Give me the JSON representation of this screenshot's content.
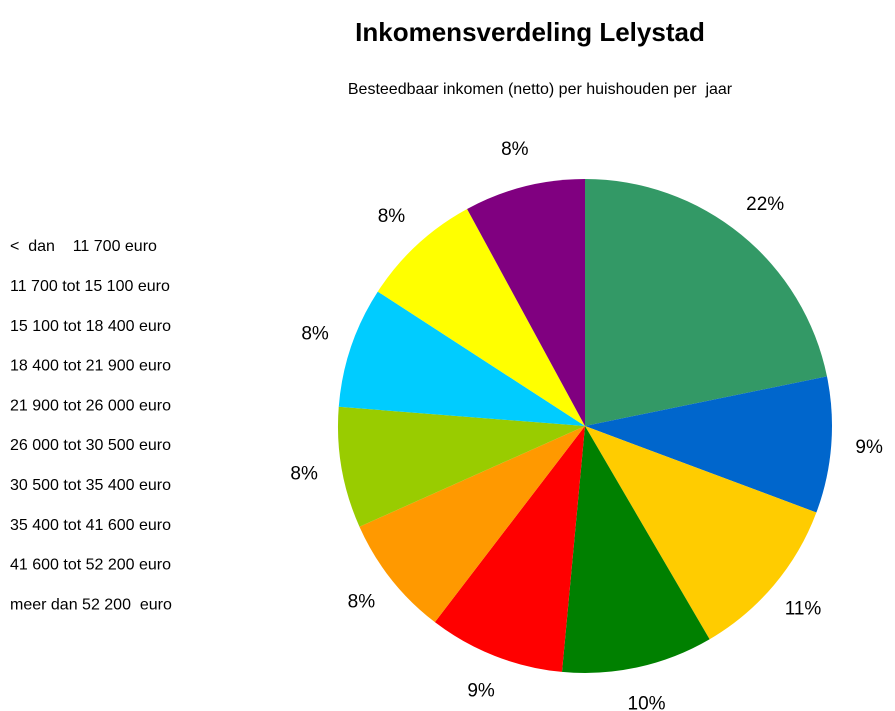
{
  "chart_data": {
    "type": "pie",
    "title": "Inkomensverdeling Lelystad",
    "subtitle": "Besteedbaar inkomen (netto) per huishouden per  jaar",
    "categories": [
      "<  dan    11 700 euro",
      "11 700 tot 15 100 euro",
      "15 100 tot 18 400 euro",
      "18 400 tot 21 900 euro",
      "21 900 tot 26 000 euro",
      "26 000 tot 30 500 euro",
      "30 500 tot 35 400 euro",
      "35 400 tot 41 600 euro",
      "41 600 tot 52 200 euro",
      "meer dan 52 200  euro"
    ],
    "values": [
      22,
      9,
      11,
      10,
      9,
      8,
      8,
      8,
      8,
      8
    ],
    "value_labels": [
      "22%",
      "9%",
      "11%",
      "10%",
      "9%",
      "8%",
      "8%",
      "8%",
      "8%",
      "8%"
    ],
    "colors": [
      "#339966",
      "#0066cc",
      "#ffcc00",
      "#008000",
      "#ff0000",
      "#ff9900",
      "#99cc00",
      "#00ccff",
      "#ffff00",
      "#800080"
    ]
  }
}
